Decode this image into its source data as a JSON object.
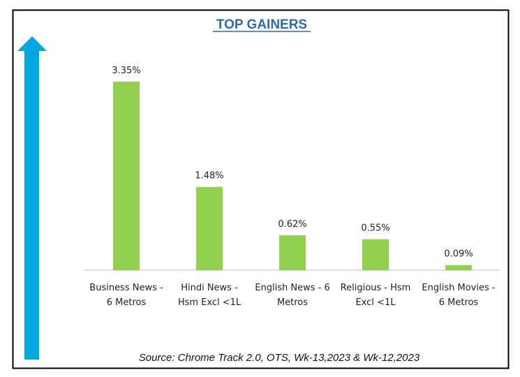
{
  "chart_data": {
    "type": "bar",
    "title": "TOP GAINERS",
    "categories": [
      [
        "Business News -",
        "6 Metros"
      ],
      [
        "Hindi News -",
        "Hsm Excl <1L"
      ],
      [
        "English News - 6",
        "Metros"
      ],
      [
        "Religious - Hsm",
        "Excl <1L"
      ],
      [
        "English Movies -",
        "6 Metros"
      ]
    ],
    "values": [
      3.35,
      1.48,
      0.62,
      0.55,
      0.09
    ],
    "data_labels": [
      "3.35%",
      "1.48%",
      "0.62%",
      "0.55%",
      "0.09%"
    ],
    "xlabel": "",
    "ylabel": "",
    "ylim": [
      0,
      3.35
    ],
    "grid": false,
    "legend": "none",
    "bar_color": "#92d050",
    "arrow_color": "#00a8e0",
    "title_color": "#2e6ba8",
    "source": "Source: Chrome Track 2.0, OTS, Wk-13,2023 & Wk-12,2023"
  }
}
